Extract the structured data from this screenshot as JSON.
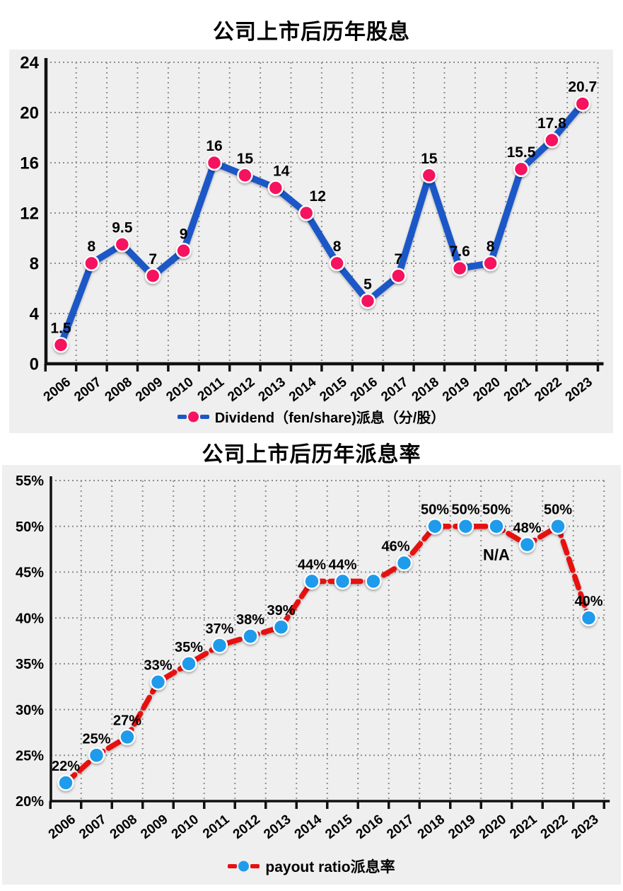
{
  "page_background": "#ffffff",
  "panel_background": "#efefef",
  "chart_data": [
    {
      "type": "line",
      "title": "公司上市后历年股息",
      "legend": "Dividend（fen/share)派息（分/股）",
      "legend_position": "bottom",
      "x": [
        "2006",
        "2007",
        "2008",
        "2009",
        "2010",
        "2011",
        "2012",
        "2013",
        "2014",
        "2015",
        "2016",
        "2017",
        "2018",
        "2019",
        "2020",
        "2021",
        "2022",
        "2023"
      ],
      "series": [
        {
          "name": "Dividend（fen/share)派息（分/股）",
          "values": [
            1.5,
            8,
            9.5,
            7,
            9,
            16,
            15,
            14,
            12,
            8,
            5,
            7,
            15,
            7.6,
            8,
            15.5,
            17.8,
            20.7
          ]
        }
      ],
      "point_labels": [
        "1.5",
        "8",
        "9.5",
        "7",
        "9",
        "16",
        "15",
        "14",
        "12",
        "8",
        "5",
        "7",
        "15",
        "7.6",
        "8",
        "15.5",
        "17.8",
        "20.7"
      ],
      "ylim": [
        0,
        24
      ],
      "yticks": [
        0,
        4,
        8,
        12,
        16,
        20,
        24
      ],
      "ytick_labels": [
        "0",
        "4",
        "8",
        "12",
        "16",
        "20",
        "24"
      ],
      "grid": true,
      "line_style": "solid",
      "line_color": "#1c57c7",
      "marker_color": "#f5125e",
      "annotations": []
    },
    {
      "type": "line",
      "title": "公司上市后历年派息率",
      "legend": "payout ratio派息率",
      "legend_position": "bottom",
      "x": [
        "2006",
        "2007",
        "2008",
        "2009",
        "2010",
        "2011",
        "2012",
        "2013",
        "2014",
        "2015",
        "2016",
        "2017",
        "2018",
        "2019",
        "2020",
        "2021",
        "2022",
        "2023"
      ],
      "series": [
        {
          "name": "payout ratio派息率",
          "values": [
            22,
            25,
            27,
            33,
            35,
            37,
            38,
            39,
            44,
            44,
            44,
            46,
            50,
            50,
            50,
            48,
            50,
            40
          ]
        }
      ],
      "point_labels": [
        "22%",
        "25%",
        "27%",
        "33%",
        "35%",
        "37%",
        "38%",
        "39%",
        "44%",
        "44%",
        "",
        "46%",
        "50%",
        "50%",
        "50%",
        "48%",
        "50%",
        "40%"
      ],
      "ylim": [
        20,
        55
      ],
      "yticks": [
        20,
        25,
        30,
        35,
        40,
        45,
        50,
        55
      ],
      "ytick_labels": [
        "20%",
        "25%",
        "30%",
        "35%",
        "40%",
        "45%",
        "50%",
        "55%"
      ],
      "grid": true,
      "line_style": "dashed",
      "line_color": "#e8100f",
      "marker_color": "#1f9beb",
      "annotations": [
        {
          "text": "N/A",
          "x": "2020",
          "x_index": 14,
          "value": 46.3
        }
      ]
    }
  ]
}
